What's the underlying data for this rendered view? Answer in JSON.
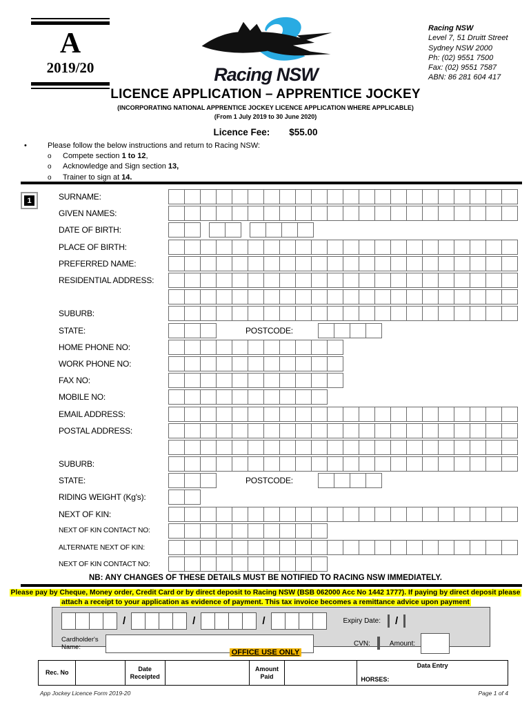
{
  "colors": {
    "accent_cyan": "#29ABE2",
    "highlight_yellow": "#FFFF00",
    "highlight_amber": "#F0B400",
    "panel_gray": "#D9D9D9"
  },
  "header": {
    "series_letter": "A",
    "series_year": "2019/20",
    "logo_text": "Racing NSW",
    "address": {
      "name": "Racing NSW",
      "line1": "Level 7, 51 Druitt Street",
      "line2": "Sydney NSW 2000",
      "phone": "Ph: (02) 9551 7500",
      "fax": "Fax: (02) 9551 7587",
      "abn": "ABN:  86 281 604 417"
    }
  },
  "title": {
    "main": "LICENCE APPLICATION – APPRENTICE JOCKEY",
    "sub1": "(INCORPORATING NATIONAL APPRENTICE JOCKEY LICENCE APPLICATION WHERE APPLICABLE)",
    "sub2": "(From 1 July 2019 to 30 June 2020)",
    "fee_label": "Licence Fee:",
    "fee_value": "$55.00"
  },
  "instructions": {
    "intro": "Please follow the below instructions and return to Racing NSW:",
    "items": [
      {
        "pre": "Compete section ",
        "bold": "1 to 12",
        "post": ","
      },
      {
        "pre": "Acknowledge and Sign section ",
        "bold": "13,",
        "post": ""
      },
      {
        "pre": "Trainer to sign at ",
        "bold": "14.",
        "post": ""
      }
    ]
  },
  "section1": {
    "number": "1",
    "rows": [
      {
        "label": "SURNAME:",
        "groups": [
          22
        ]
      },
      {
        "label": "GIVEN NAMES:",
        "groups": [
          22
        ]
      },
      {
        "label": "DATE OF BIRTH:",
        "groups": [
          2,
          2,
          4
        ]
      },
      {
        "label": "PLACE OF BIRTH:",
        "groups": [
          22
        ]
      },
      {
        "label": "PREFERRED NAME:",
        "groups": [
          22
        ]
      },
      {
        "label": "RESIDENTIAL ADDRESS:",
        "groups": [
          22
        ]
      },
      {
        "label": "",
        "groups": [
          22
        ]
      },
      {
        "label": "SUBURB:",
        "groups": [
          22
        ]
      },
      {
        "label": "STATE:",
        "groups": [
          3
        ],
        "extra_label": "POSTCODE:",
        "extra_groups": [
          4
        ]
      },
      {
        "label": "HOME PHONE NO:",
        "groups": [
          11
        ]
      },
      {
        "label": "WORK PHONE NO:",
        "groups": [
          11
        ]
      },
      {
        "label": "FAX NO:",
        "groups": [
          11
        ]
      },
      {
        "label": "MOBILE NO:",
        "groups": [
          10
        ]
      },
      {
        "label": "EMAIL ADDRESS:",
        "groups": [
          22
        ]
      },
      {
        "label": "POSTAL ADDRESS:",
        "groups": [
          22
        ]
      },
      {
        "label": "",
        "groups": [
          22
        ]
      },
      {
        "label": "SUBURB:",
        "groups": [
          22
        ]
      },
      {
        "label": "STATE:",
        "groups": [
          3
        ],
        "extra_label": "POSTCODE:",
        "extra_groups": [
          4
        ]
      },
      {
        "label": "RIDING WEIGHT (Kg's):",
        "groups": [
          2
        ]
      },
      {
        "label": "NEXT OF KIN:",
        "groups": [
          22
        ]
      },
      {
        "label": "NEXT OF KIN CONTACT NO:",
        "groups": [
          10
        ],
        "small": true
      },
      {
        "label": "ALTERNATE NEXT OF KIN:",
        "groups": [
          22
        ],
        "small": true
      },
      {
        "label": "NEXT OF KIN CONTACT NO:",
        "groups": [
          10
        ],
        "small": true
      }
    ]
  },
  "nb_line": "NB: ANY CHANGES OF THESE DETAILS MUST BE NOTIFIED TO RACING NSW IMMEDIATELY.",
  "payment": {
    "notice_line1": "Please pay by Cheque, Money order, Credit Card or by direct deposit to Racing NSW (BSB 062000 Acc No 1442 1777). If paying by direct deposit please",
    "notice_line2": "attach a receipt to your application as evidence of payment. This tax invoice becomes a remittance advice upon payment",
    "card_groups": [
      4,
      4,
      4,
      4
    ],
    "separator": "/",
    "expiry_label": "Expiry Date:",
    "expiry_groups": [
      2,
      2
    ],
    "cardholder_label_line1": "Cardholder's",
    "cardholder_label_line2": "Name:",
    "cvn_label": "CVN:",
    "cvn_boxes": 3,
    "amount_label": "Amount:"
  },
  "office": {
    "title": "OFFICE USE ONLY",
    "columns": [
      "Rec. No",
      "",
      "Date Receipted",
      "",
      "Amount Paid",
      ""
    ],
    "data_entry_label": "Data Entry",
    "horses_label": "HORSES:"
  },
  "footer": {
    "left": "App Jockey Licence Form 2019-20",
    "right": "Page 1 of 4"
  }
}
